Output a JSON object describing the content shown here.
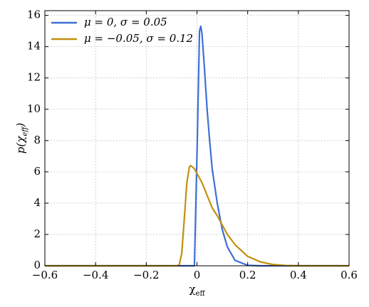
{
  "chart_data": {
    "type": "line",
    "x_label": [
      "χ",
      "eff"
    ],
    "y_label": [
      "p(χ",
      "eff",
      ")"
    ],
    "x": [
      -0.6,
      -0.2,
      -0.1,
      -0.08,
      -0.07,
      -0.06,
      -0.05,
      -0.04,
      -0.03,
      -0.025,
      -0.02,
      -0.01,
      0,
      0.01,
      0.015,
      0.02,
      0.03,
      0.04,
      0.05,
      0.06,
      0.08,
      0.1,
      0.12,
      0.15,
      0.2,
      0.25,
      0.3,
      0.35,
      0.4,
      0.5,
      0.6
    ],
    "series": [
      {
        "name": "μ = 0, σ = 0.05",
        "color": "#3e6fd6",
        "values": [
          0,
          0,
          0,
          0,
          0,
          0,
          0,
          0,
          0,
          0,
          0,
          0,
          7,
          15,
          15.3,
          14.8,
          12.5,
          10,
          8,
          6.2,
          4,
          2.3,
          1.2,
          0.35,
          0.03,
          0,
          0,
          0,
          0,
          0,
          0
        ]
      },
      {
        "name": "μ = −0.05, σ = 0.12",
        "color": "#c0900f",
        "values": [
          0,
          0,
          0,
          0,
          0.05,
          0.8,
          3,
          5.3,
          6.3,
          6.4,
          6.35,
          6.2,
          5.9,
          5.6,
          5.45,
          5.3,
          4.9,
          4.5,
          4.1,
          3.7,
          3.2,
          2.6,
          2.0,
          1.35,
          0.6,
          0.25,
          0.08,
          0.02,
          0,
          0,
          0
        ]
      }
    ],
    "xlim": [
      -0.6,
      0.6
    ],
    "ylim": [
      0,
      16.3
    ],
    "xticks": [
      {
        "value": -0.6,
        "label": "−0.6"
      },
      {
        "value": -0.4,
        "label": "−0.4"
      },
      {
        "value": -0.2,
        "label": "−0.2"
      },
      0,
      0.2,
      0.4,
      0.6
    ],
    "yticks": [
      0,
      2,
      4,
      6,
      8,
      10,
      12,
      14,
      16
    ],
    "grid": true,
    "legend": "upper-left"
  }
}
